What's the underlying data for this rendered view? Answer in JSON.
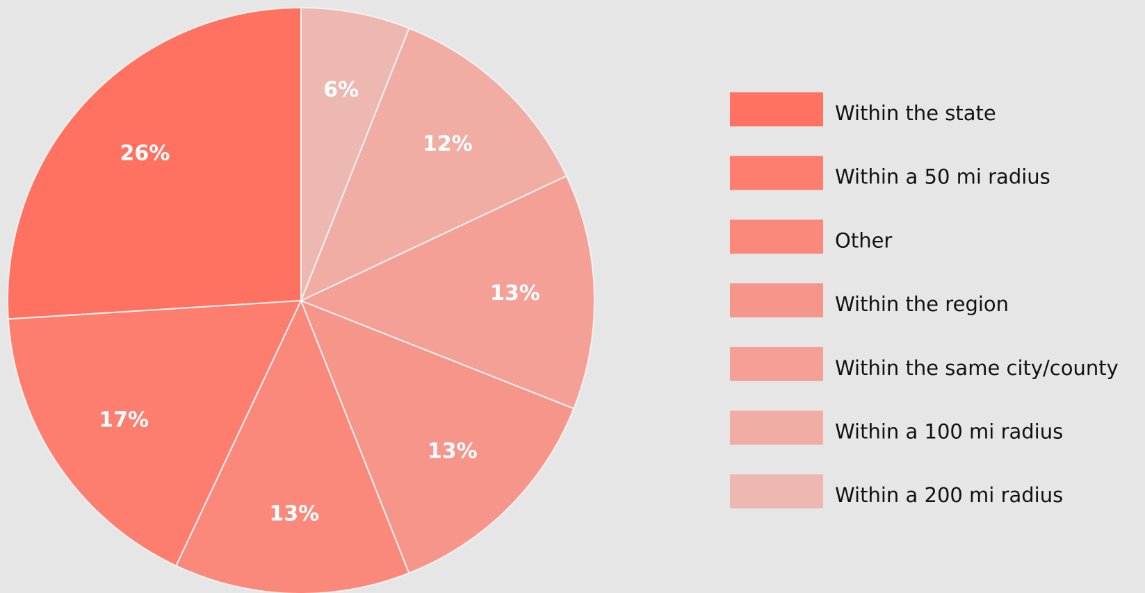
{
  "chart_data": {
    "type": "pie",
    "categories": [
      "Within the state",
      "Within a 50 mi radius",
      "Other",
      "Within the region",
      "Within the same city/county",
      "Within a 100 mi radius",
      "Within a 200 mi radius"
    ],
    "values": [
      26,
      17,
      13,
      13,
      13,
      12,
      6
    ],
    "value_labels": [
      "26%",
      "17%",
      "13%",
      "13%",
      "13%",
      "12%",
      "6%"
    ],
    "colors": [
      "#ff7262",
      "#fd7d6e",
      "#fa897b",
      "#f6958a",
      "#f4a096",
      "#f1aca4",
      "#eeb8b2"
    ],
    "legend": "right"
  }
}
